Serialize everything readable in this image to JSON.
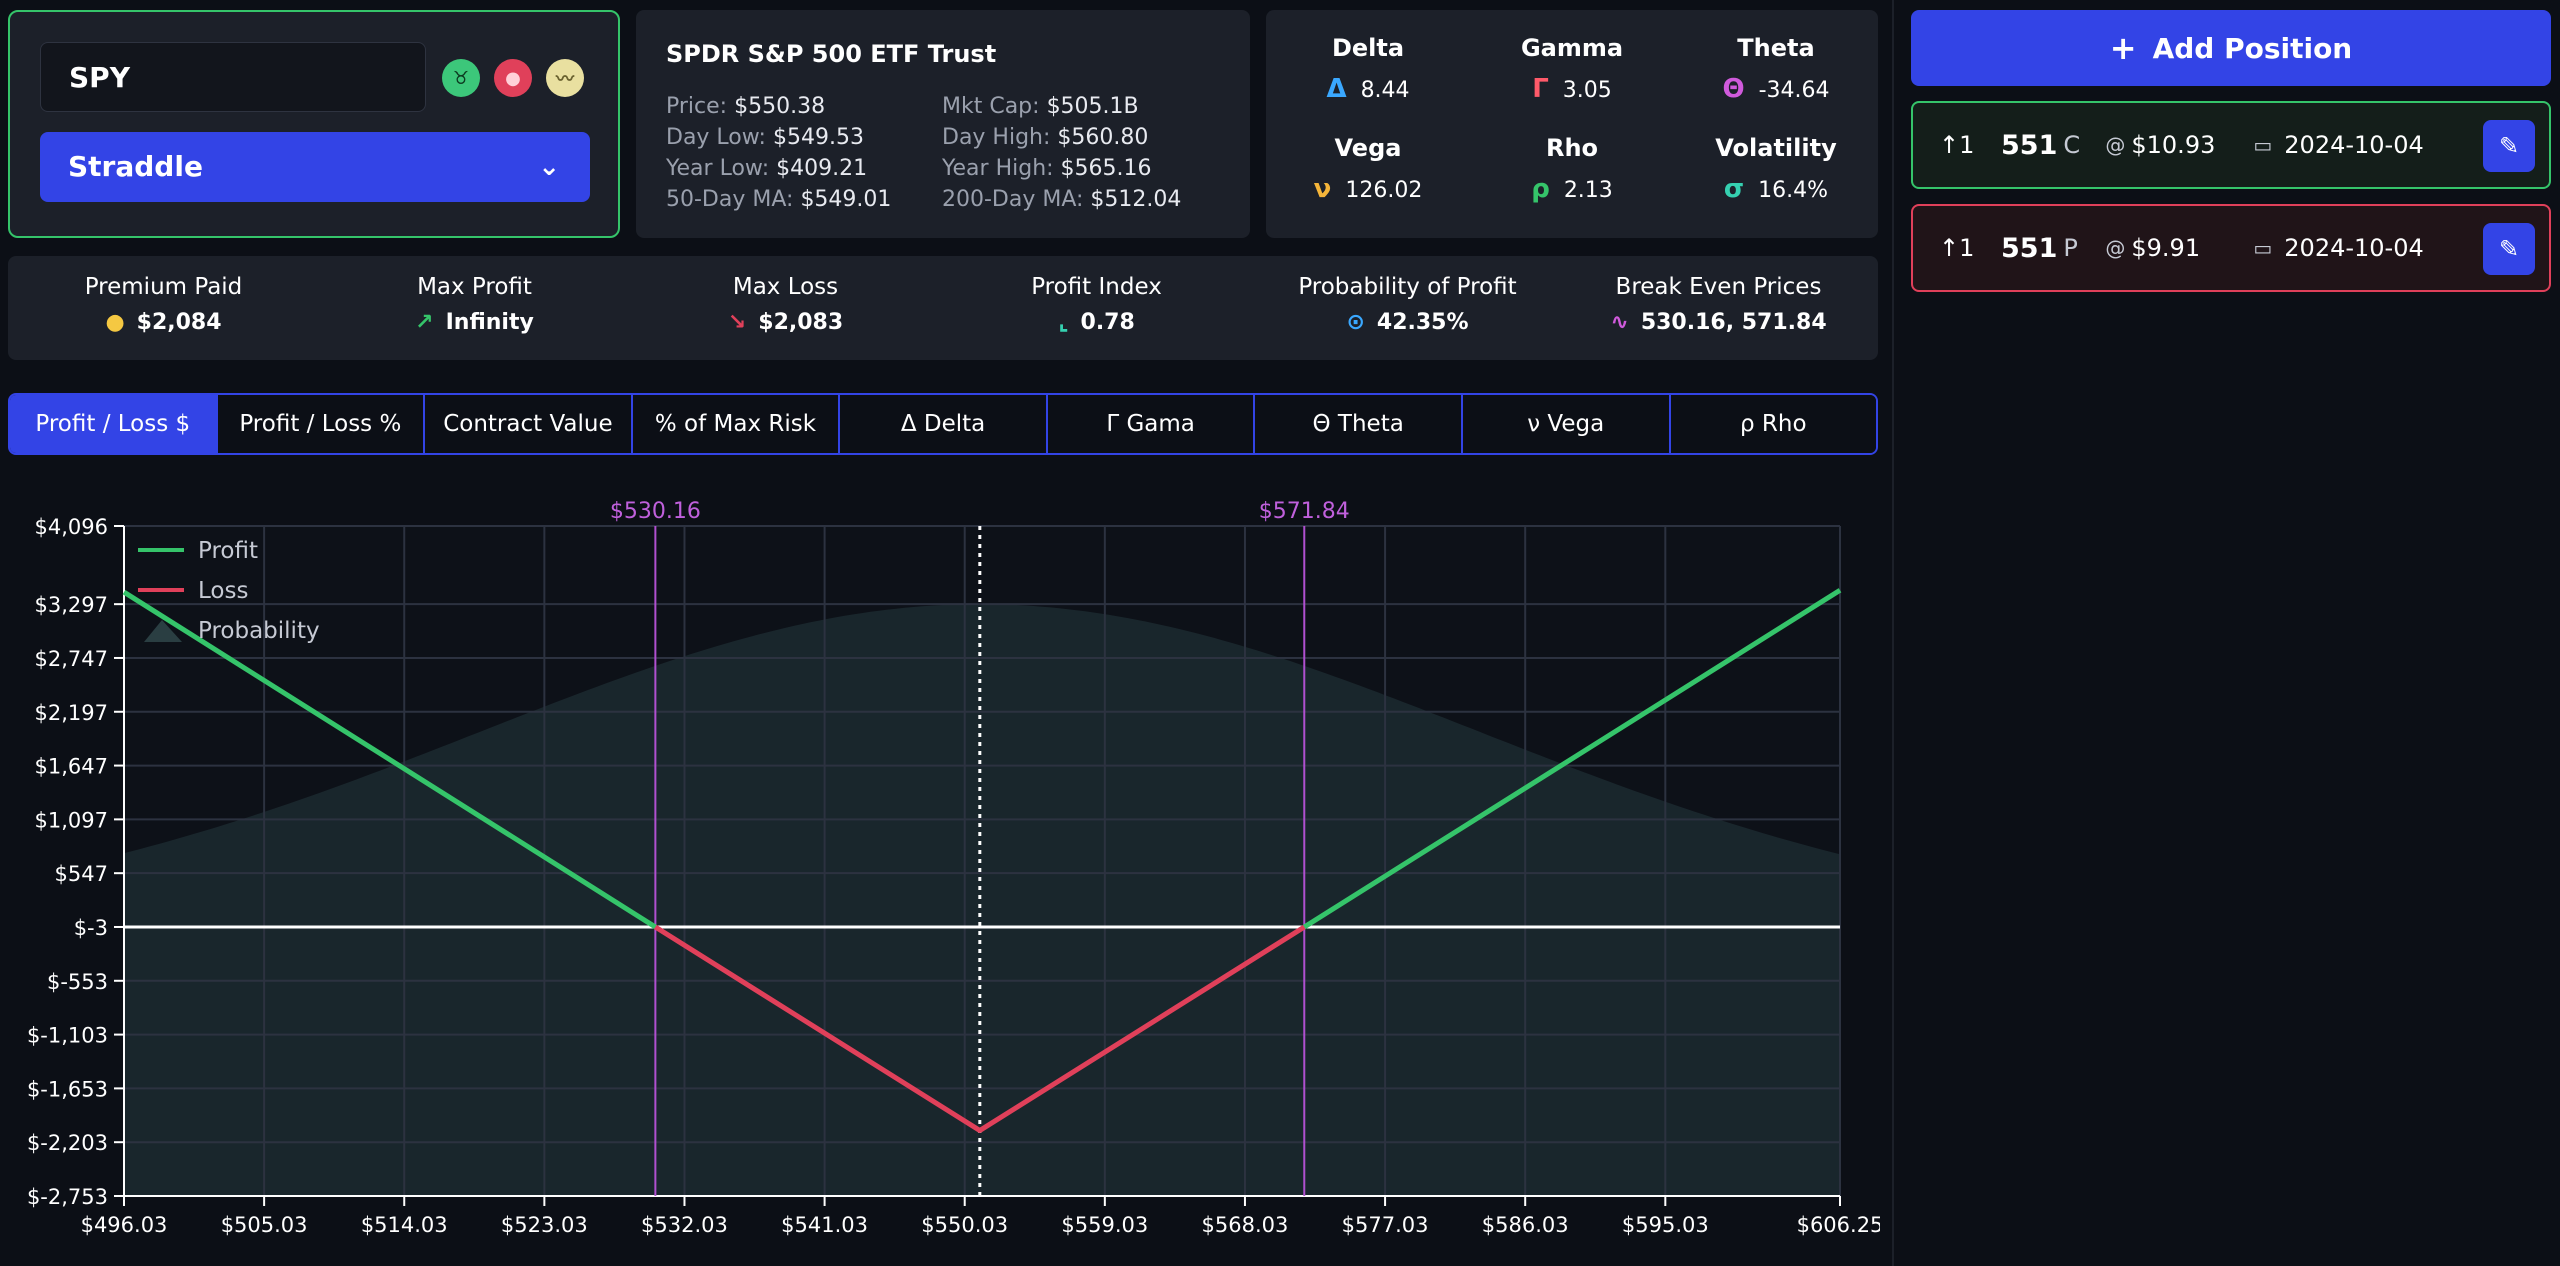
{
  "symbol": {
    "ticker": "SPY",
    "strategy": "Straddle",
    "sentiment_icons": [
      "bull-icon",
      "bear-icon",
      "neutral-icon"
    ]
  },
  "info": {
    "name": "SPDR S&P 500 ETF Trust",
    "price_label": "Price:",
    "price": "$550.38",
    "mktcap_label": "Mkt Cap:",
    "mktcap": "$505.1B",
    "daylow_label": "Day Low:",
    "daylow": "$549.53",
    "dayhigh_label": "Day High:",
    "dayhigh": "$560.80",
    "yearlow_label": "Year Low:",
    "yearlow": "$409.21",
    "yearhigh_label": "Year High:",
    "yearhigh": "$565.16",
    "ma50_label": "50-Day MA:",
    "ma50": "$549.01",
    "ma200_label": "200-Day MA:",
    "ma200": "$512.04"
  },
  "greeks": {
    "delta": {
      "label": "Delta",
      "symbol": "Δ",
      "value": "8.44",
      "color": "#3aa8ff"
    },
    "gamma": {
      "label": "Gamma",
      "symbol": "Γ",
      "value": "3.05",
      "color": "#ff5a6a"
    },
    "theta": {
      "label": "Theta",
      "symbol": "Θ",
      "value": "-34.64",
      "color": "#d05adc"
    },
    "vega": {
      "label": "Vega",
      "symbol": "ν",
      "value": "126.02",
      "color": "#f5b53a"
    },
    "rho": {
      "label": "Rho",
      "symbol": "ρ",
      "value": "2.13",
      "color": "#35c46a"
    },
    "volatility": {
      "label": "Volatility",
      "symbol": "σ",
      "value": "16.4%",
      "color": "#35d0b0"
    }
  },
  "stats": {
    "premium": {
      "label": "Premium Paid",
      "value": "$2,084",
      "icon": "money-bag-icon"
    },
    "max_profit": {
      "label": "Max Profit",
      "value": "Infinity",
      "icon": "trend-up-icon"
    },
    "max_loss": {
      "label": "Max Loss",
      "value": "$2,083",
      "icon": "trend-down-icon"
    },
    "profit_index": {
      "label": "Profit Index",
      "value": "0.78",
      "icon": "axis-icon"
    },
    "prob_profit": {
      "label": "Probability of Profit",
      "value": "42.35%",
      "icon": "search-dollar-icon"
    },
    "break_even": {
      "label": "Break Even Prices",
      "value": "530.16, 571.84",
      "icon": "pulse-icon"
    }
  },
  "tabs": [
    "Profit / Loss $",
    "Profit / Loss %",
    "Contract Value",
    "% of Max Risk",
    "Δ Delta",
    "Γ Gama",
    "Θ Theta",
    "ν Vega",
    "ρ Rho"
  ],
  "active_tab": 0,
  "add_position_label": "Add Position",
  "positions": [
    {
      "qty": "↑1",
      "strike": "551",
      "type": "C",
      "at": "@",
      "price": "$10.93",
      "date": "2024-10-04",
      "border": "#35c46a"
    },
    {
      "qty": "↑1",
      "strike": "551",
      "type": "P",
      "at": "@",
      "price": "$9.91",
      "date": "2024-10-04",
      "border": "#e0405a"
    }
  ],
  "chart_data": {
    "type": "line",
    "xlim": [
      496.03,
      606.25
    ],
    "ylim": [
      -2753,
      4096
    ],
    "x_ticks": [
      "$496.03",
      "$505.03",
      "$514.03",
      "$523.03",
      "$532.03",
      "$541.03",
      "$550.03",
      "$559.03",
      "$568.03",
      "$577.03",
      "$586.03",
      "$595.03",
      "$606.25"
    ],
    "x_tick_values": [
      496.03,
      505.03,
      514.03,
      523.03,
      532.03,
      541.03,
      550.03,
      559.03,
      568.03,
      577.03,
      586.03,
      595.03,
      606.25
    ],
    "y_ticks": [
      "$4,096",
      "$3,297",
      "$2,747",
      "$2,197",
      "$1,647",
      "$1,097",
      "$547",
      "$-3",
      "$-553",
      "$-1,103",
      "$-1,653",
      "$-2,203",
      "$-2,753"
    ],
    "y_tick_values": [
      4096,
      3297,
      2747,
      2197,
      1647,
      1097,
      547,
      -3,
      -553,
      -1103,
      -1653,
      -2203,
      -2753
    ],
    "legend": [
      {
        "name": "Profit",
        "color": "#35c46a"
      },
      {
        "name": "Loss",
        "color": "#e0405a"
      },
      {
        "name": "Probability",
        "color": "#2a3e42"
      }
    ],
    "legend_position": "top-left",
    "series": [
      {
        "name": "Profit",
        "points": [
          [
            496.03,
            3420
          ],
          [
            530.16,
            -3
          ]
        ]
      },
      {
        "name": "Profit",
        "points": [
          [
            571.84,
            -3
          ],
          [
            606.25,
            3440
          ]
        ]
      },
      {
        "name": "Loss",
        "points": [
          [
            530.16,
            -3
          ],
          [
            551.0,
            -2083
          ],
          [
            571.84,
            -3
          ]
        ]
      }
    ],
    "probability_peak_x": 551.0,
    "current_price": 551.0,
    "break_even_labels": [
      "$530.16",
      "$571.84"
    ],
    "break_even_values": [
      530.16,
      571.84
    ],
    "grid": true
  }
}
